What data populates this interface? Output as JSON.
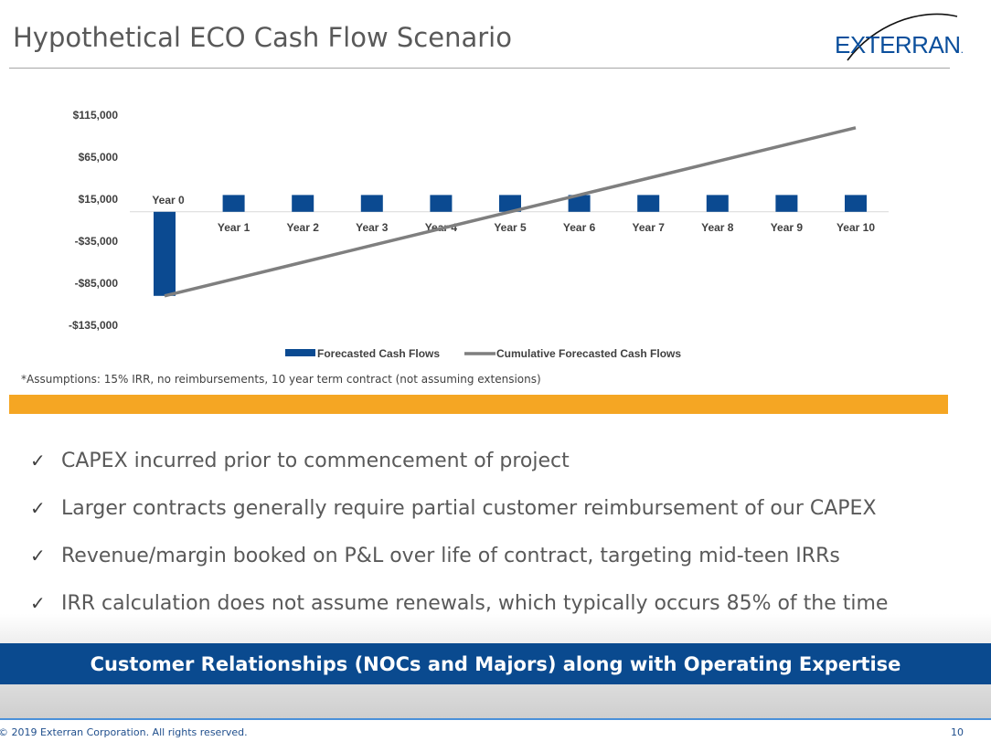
{
  "slide": {
    "title": "Hypothetical ECO Cash Flow Scenario",
    "logo_text": "EXTERRAN",
    "logo_mark": ".",
    "assumptions": "*Assumptions: 15% IRR, no reimbursements, 10 year term contract (not assuming extensions)",
    "bullets": [
      "CAPEX incurred prior to commencement of project",
      "Larger contracts generally require partial customer reimbursement of our CAPEX",
      "Revenue/margin booked on P&L over life of contract, targeting mid-teen IRRs",
      "IRR calculation does not assume renewals, which typically occurs 85% of the time"
    ],
    "check_glyph": "✓",
    "banner": "Customer Relationships (NOCs and Majors) along with Operating Expertise",
    "footer_copyright": "© 2019 Exterran Corporation. All rights reserved.",
    "page_number": "10"
  },
  "colors": {
    "bar": "#0b4a91",
    "line": "#7f7f7f",
    "accent_orange": "#f5a623",
    "banner_blue": "#0a4a8f"
  },
  "chart_data": {
    "type": "bar",
    "categories": [
      "Year 0",
      "Year 1",
      "Year 2",
      "Year 3",
      "Year 4",
      "Year 5",
      "Year 6",
      "Year 7",
      "Year 8",
      "Year 9",
      "Year 10"
    ],
    "series": [
      {
        "name": "Forecasted Cash Flows",
        "type": "bar",
        "values": [
          -100000,
          20000,
          20000,
          20000,
          20000,
          20000,
          20000,
          20000,
          20000,
          20000,
          20000
        ]
      },
      {
        "name": "Cumulative Forecasted Cash Flows",
        "type": "line",
        "values": [
          -100000,
          -80000,
          -60000,
          -40000,
          -20000,
          0,
          20000,
          40000,
          60000,
          80000,
          100000
        ]
      }
    ],
    "ylim": [
      -135000,
      115000
    ],
    "yticks": [
      115000,
      65000,
      15000,
      -35000,
      -85000,
      -135000
    ],
    "ytick_labels": [
      "$115,000",
      "$65,000",
      "$15,000",
      "-$35,000",
      "-$85,000",
      "-$135,000"
    ],
    "grid": false,
    "legend": "bottom"
  }
}
